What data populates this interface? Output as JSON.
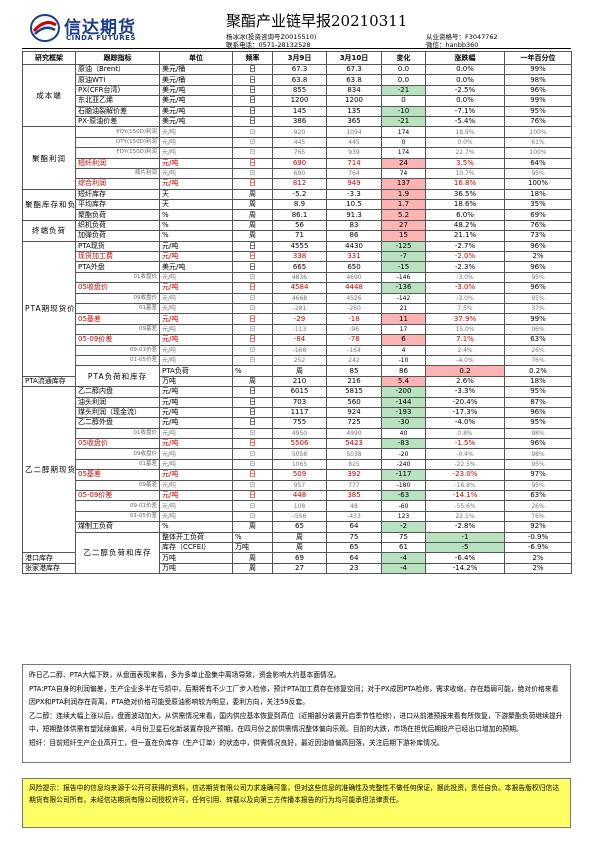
{
  "header": {
    "logo_cn": "信达期货",
    "logo_en": "CINDA FUTURES",
    "title": "聚酯产业链早报20210311",
    "analyst": "杨冰冰(投资咨询号Z0015510)",
    "phone": "联系电话：0571-28132528",
    "license": "从业资格号：F3047762",
    "wechat": "微信：hanbb360"
  },
  "table": {
    "headers": [
      "研究框架",
      "跟踪指标",
      "单位",
      "频率",
      "3月9日",
      "3月10日",
      "变化",
      "涨跌幅",
      "一年百分位"
    ],
    "rows": [
      {
        "cat": "成本端",
        "span": 6,
        "ind": "原油（Brent）",
        "unit": "美元/桶",
        "freq": "日",
        "v1": "67.3",
        "v2": "67.3",
        "chg": "0.0",
        "pct": "0.0%",
        "pctl": "99%"
      },
      {
        "ind": "原油WTI",
        "unit": "美元/桶",
        "freq": "日",
        "v1": "63.8",
        "v2": "63.8",
        "chg": "0.0",
        "pct": "0.0%",
        "pctl": "98%"
      },
      {
        "ind": "PX(CFR台湾)",
        "unit": "美元/吨",
        "freq": "日",
        "v1": "855",
        "v2": "834",
        "chg": "-21",
        "pct": "-2.5%",
        "pctl": "96%",
        "dir": "neg"
      },
      {
        "ind": "东北亚乙烯",
        "unit": "美元/吨",
        "freq": "日",
        "v1": "1200",
        "v2": "1200",
        "chg": "0",
        "pct": "0.0%",
        "pctl": "99%"
      },
      {
        "ind": "石脑油裂解价差",
        "unit": "美元/吨",
        "freq": "日",
        "v1": "145",
        "v2": "135",
        "chg": "-10",
        "pct": "-7.1%",
        "pctl": "95%",
        "dir": "neg"
      },
      {
        "ind": "PX-原油价差",
        "unit": "美元/吨",
        "freq": "日",
        "v1": "386",
        "v2": "365",
        "chg": "-21",
        "pct": "-5.4%",
        "pctl": "76%",
        "dir": "neg"
      },
      {
        "cat": "聚酯利润",
        "span": 6,
        "ind": "POY(150D)利润",
        "unit": "元/吨",
        "freq": "日",
        "v1": "920",
        "v2": "1094",
        "chg": "174",
        "pct": "18.9%",
        "pctl": "100%",
        "sub": true
      },
      {
        "ind": "DTY(150D)利润",
        "unit": "元/吨",
        "freq": "日",
        "v1": "445",
        "v2": "445",
        "chg": "0",
        "pct": "0.0%",
        "pctl": "61%",
        "sub": true
      },
      {
        "ind": "FDY(150D)利润",
        "unit": "元/吨",
        "freq": "日",
        "v1": "765",
        "v2": "939",
        "chg": "174",
        "pct": "22.7%",
        "pctl": "100%",
        "sub": true
      },
      {
        "ind": "短纤利润",
        "unit": "元/吨",
        "freq": "日",
        "v1": "690",
        "v2": "714",
        "chg": "24",
        "pct": "3.5%",
        "pctl": "64%",
        "red": true,
        "dir": "pos"
      },
      {
        "ind": "瓶片利润",
        "unit": "元/吨",
        "freq": "日",
        "v1": "690",
        "v2": "764",
        "chg": "74",
        "pct": "10.7%",
        "pctl": "95%",
        "sub": true
      },
      {
        "ind": "综合利润",
        "unit": "元/吨",
        "freq": "日",
        "v1": "812",
        "v2": "949",
        "chg": "137",
        "pct": "16.8%",
        "pctl": "100%",
        "red": true,
        "dir": "pos"
      },
      {
        "cat": "聚酯库存和负荷",
        "span": 3,
        "ind": "短纤库存",
        "unit": "天",
        "freq": "周",
        "v1": "-5.2",
        "v2": "-3.3",
        "chg": "1.9",
        "pct": "36.5%",
        "pctl": "18%",
        "dir": "pos"
      },
      {
        "ind": "平均库存",
        "unit": "天",
        "freq": "周",
        "v1": "8.9",
        "v2": "10.5",
        "chg": "1.7",
        "pct": "18.6%",
        "pctl": "35%",
        "dir": "pos"
      },
      {
        "ind": "聚酯负荷",
        "unit": "%",
        "freq": "周",
        "v1": "86.1",
        "v2": "91.3",
        "chg": "5.2",
        "pct": "6.0%",
        "pctl": "69%",
        "dir": "pos"
      },
      {
        "cat": "终端负荷",
        "span": 2,
        "ind": "织机负荷",
        "unit": "%",
        "freq": "周",
        "v1": "56",
        "v2": "83",
        "chg": "27",
        "pct": "48.2%",
        "pctl": "76%",
        "dir": "pos"
      },
      {
        "ind": "加弹负荷",
        "unit": "%",
        "freq": "周",
        "v1": "71",
        "v2": "86",
        "chg": "15",
        "pct": "21.1%",
        "pctl": "73%",
        "dir": "pos"
      },
      {
        "cat": "PTA期现货价格和价差",
        "span": 13,
        "ind": "PTA现货",
        "unit": "元/吨",
        "freq": "日",
        "v1": "4555",
        "v2": "4430",
        "chg": "-125",
        "pct": "-2.7%",
        "pctl": "96%",
        "dir": "neg"
      },
      {
        "ind": "现货加工费",
        "unit": "元/吨",
        "freq": "日",
        "v1": "338",
        "v2": "331",
        "chg": "-7",
        "pct": "-2.0%",
        "pctl": "2%",
        "red": true,
        "dir": "neg"
      },
      {
        "ind": "PTA外盘",
        "unit": "美元/吨",
        "freq": "日",
        "v1": "665",
        "v2": "650",
        "chg": "-15",
        "pct": "-2.3%",
        "pctl": "96%",
        "dir": "neg"
      },
      {
        "ind": "01收盘价",
        "unit": "元/吨",
        "freq": "日",
        "v1": "4836",
        "v2": "4690",
        "chg": "-146",
        "pct": "-3.0%",
        "pctl": "95%",
        "sub": true
      },
      {
        "ind": "05收盘价",
        "unit": "元/吨",
        "freq": "日",
        "v1": "4584",
        "v2": "4448",
        "chg": "-136",
        "pct": "-3.0%",
        "pctl": "96%",
        "red": true,
        "dir": "neg"
      },
      {
        "ind": "09收盘价",
        "unit": "元/吨",
        "freq": "日",
        "v1": "4668",
        "v2": "4526",
        "chg": "-142",
        "pct": "-3.0%",
        "pctl": "95%",
        "sub": true
      },
      {
        "ind": "01基差",
        "unit": "元/吨",
        "freq": "日",
        "v1": "-281",
        "v2": "-260",
        "chg": "21",
        "pct": "7.5%",
        "pctl": "37%",
        "sub": true
      },
      {
        "ind": "05基差",
        "unit": "元/吨",
        "freq": "日",
        "v1": "-29",
        "v2": "-18",
        "chg": "11",
        "pct": "37.9%",
        "pctl": "99%",
        "red": true,
        "dir": "pos"
      },
      {
        "ind": "09基差",
        "unit": "元/吨",
        "freq": "日",
        "v1": "-113",
        "v2": "-96",
        "chg": "17",
        "pct": "15.0%",
        "pctl": "96%",
        "sub": true
      },
      {
        "ind": "05-09价差",
        "unit": "元/吨",
        "freq": "日",
        "v1": "-84",
        "v2": "-78",
        "chg": "6",
        "pct": "7.1%",
        "pctl": "63%",
        "red": true,
        "dir": "pos"
      },
      {
        "ind": "09-01价差",
        "unit": "元/吨",
        "freq": "日",
        "v1": "-168",
        "v2": "-164",
        "chg": "4",
        "pct": "2.4%",
        "pctl": "26%",
        "sub": true
      },
      {
        "ind": "01-05价差",
        "unit": "元/吨",
        "freq": "日",
        "v1": "252",
        "v2": "242",
        "chg": "-10",
        "pct": "-4.0%",
        "pctl": "76%",
        "sub": true
      },
      {
        "cat": "PTA负荷和库存",
        "span": 2,
        "ind": "PTA负荷",
        "unit": "%",
        "freq": "周",
        "v1": "85",
        "v2": "86",
        "chg": "0.2",
        "pct": "0.2%",
        "pctl": "37%",
        "dir": "pos"
      },
      {
        "ind": "PTA流通库存",
        "unit": "万吨",
        "freq": "周",
        "v1": "210",
        "v2": "216",
        "chg": "5.4",
        "pct": "2.6%",
        "pctl": "18%",
        "dir": "pos"
      },
      {
        "cat": "乙二醇期现货价格和价差",
        "span": 16,
        "ind": "乙二醇内盘",
        "unit": "元/吨",
        "freq": "日",
        "v1": "6015",
        "v2": "5815",
        "chg": "-200",
        "pct": "-3.3%",
        "pctl": "95%",
        "dir": "neg"
      },
      {
        "ind": "油头利润",
        "unit": "元/吨",
        "freq": "日",
        "v1": "703",
        "v2": "560",
        "chg": "-144",
        "pct": "-20.4%",
        "pctl": "87%",
        "dir": "neg"
      },
      {
        "ind": "煤头利润（现金流）",
        "unit": "元/吨",
        "freq": "日",
        "v1": "1117",
        "v2": "924",
        "chg": "-193",
        "pct": "-17.3%",
        "pctl": "96%",
        "dir": "neg"
      },
      {
        "ind": "乙二醇外盘",
        "unit": "元/吨",
        "freq": "日",
        "v1": "755",
        "v2": "725",
        "chg": "-30",
        "pct": "-4.0%",
        "pctl": "95%",
        "dir": "neg"
      },
      {
        "ind": "01收盘价",
        "unit": "元/吨",
        "freq": "日",
        "v1": "4950",
        "v2": "4990",
        "chg": "40",
        "pct": "0.8%",
        "pctl": "98%",
        "sub": true
      },
      {
        "ind": "05收盘价",
        "unit": "元/吨",
        "freq": "日",
        "v1": "5506",
        "v2": "5423",
        "chg": "-83",
        "pct": "-1.5%",
        "pctl": "96%",
        "red": true,
        "dir": "neg"
      },
      {
        "ind": "09收盘价",
        "unit": "元/吨",
        "freq": "日",
        "v1": "5058",
        "v2": "5038",
        "chg": "-20",
        "pct": "-0.4%",
        "pctl": "98%",
        "sub": true
      },
      {
        "ind": "01基差",
        "unit": "元/吨",
        "freq": "日",
        "v1": "1065",
        "v2": "825",
        "chg": "-240",
        "pct": "-22.5%",
        "pctl": "95%",
        "sub": true
      },
      {
        "ind": "05基差",
        "unit": "元/吨",
        "freq": "日",
        "v1": "509",
        "v2": "392",
        "chg": "-117",
        "pct": "-23.0%",
        "pctl": "97%",
        "red": true,
        "dir": "neg"
      },
      {
        "ind": "09基差",
        "unit": "元/吨",
        "freq": "日",
        "v1": "957",
        "v2": "777",
        "chg": "-180",
        "pct": "-18.8%",
        "pctl": "95%",
        "sub": true
      },
      {
        "ind": "05-09价差",
        "unit": "元/吨",
        "freq": "日",
        "v1": "448",
        "v2": "385",
        "chg": "-63",
        "pct": "-14.1%",
        "pctl": "63%",
        "red": true,
        "dir": "neg"
      },
      {
        "ind": "09-01价差",
        "unit": "元/吨",
        "freq": "日",
        "v1": "108",
        "v2": "48",
        "chg": "-60",
        "pct": "-55.6%",
        "pctl": "26%",
        "sub": true
      },
      {
        "ind": "01-05价差",
        "unit": "元/吨",
        "freq": "日",
        "v1": "-556",
        "v2": "-433",
        "chg": "123",
        "pct": "22.1%",
        "pctl": "76%",
        "sub": true
      },
      {
        "ind": "煤制工负荷",
        "unit": "%",
        "freq": "周",
        "v1": "65",
        "v2": "64",
        "chg": "-2",
        "pct": "-2.8%",
        "pctl": "92%",
        "dir": "neg"
      },
      {
        "cat": "乙二醇负荷和库存",
        "span": 5,
        "ind": "整体开工负荷",
        "unit": "%",
        "freq": "周",
        "v1": "75",
        "v2": "75",
        "chg": "-1",
        "pct": "-0.9%",
        "pctl": "92%",
        "dir": "neg"
      },
      {
        "ind": "库存（CCFEI）",
        "unit": "万吨",
        "freq": "周",
        "v1": "65",
        "v2": "61",
        "chg": "-5",
        "pct": "-6.9%",
        "pctl": "2%",
        "dir": "neg"
      },
      {
        "ind": "港口库存",
        "unit": "万吨",
        "freq": "周",
        "v1": "69",
        "v2": "64",
        "chg": "-4",
        "pct": "-6.4%",
        "pctl": "2%",
        "dir": "neg"
      },
      {
        "ind": "张家港库存",
        "unit": "万吨",
        "freq": "周",
        "v1": "27",
        "v2": "23",
        "chg": "-4",
        "pct": "-14.2%",
        "pctl": "2%",
        "dir": "neg"
      }
    ]
  },
  "commentary": {
    "p1": "昨日乙二醇、PTA大幅下跌，从盘面表现来看，多为多单止盈集中离场导致，资金影响大约基本面情况。",
    "p2": "PTA:PTA自身的利润偏差，生产企业多半在亏损中，后期将有不少工厂步入检修，预计PTA加工费存在修复空间；对于PX成因PTA检修，需求收缩，存在趋弱可能，绝对价格来看因PX和PTA利润存在背离，PTA绝对价格可能受原油影响较为明显，委利方向，关注59反套。",
    "p3": "乙二醇：连续大幅上涨以后，盘面波动加大，从供需情况来看，国内供应基本恢复到高位（近期部分装置开启季节性检修），进口从前港预报来看有所恢复，下游聚酯负荷继续提升中，短期整体供需有望延续偏紧，4月份卫星石化新装置存投产预期，在四月份之前供需情况整体偏向乐观。目前的大跌，市场在担忧后期投产已经出口增加的预期。",
    "p4": "短纤：目前短纤生产企业高开工，但一直在负库存（生产订单）的状态中，供需情况良好，最近因油值偏高回落，关注后期下游补库情况。"
  },
  "risk": "风险提示：报告中的信息均来源于公开可获得的资料，信达期货有限公司力求准确可靠，但对这些信息的准确性及完整性不做任何保证，据此投资，责任自负。本报告版权归信达期货有限公司所有，未经信达期货有限公司授权许可，任何引用、转载以及向第三方传播本报告的行为均可能承担法律责任。",
  "colors": {
    "positive_bg": "#fbb4b4",
    "negative_bg": "#b8e2c0",
    "highlight_text": "#d00000",
    "risk_bg": "#ffff66",
    "brand": "#1a3c8c"
  }
}
